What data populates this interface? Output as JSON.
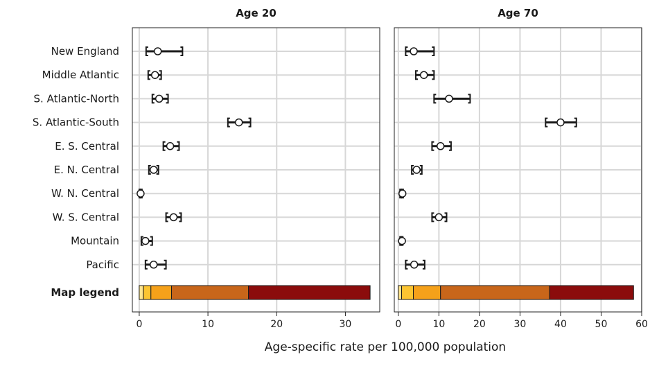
{
  "chart_data": {
    "type": "dot-interval",
    "xlabel": "Age-specific rate per 100,000 population",
    "rows": [
      "New England",
      "Middle Atlantic",
      "S. Atlantic-North",
      "S. Atlantic-South",
      "E. S. Central",
      "E. N. Central",
      "W. N. Central",
      "W. S. Central",
      "Mountain",
      "Pacific"
    ],
    "legend_row_label": "Map legend",
    "panels": [
      {
        "title": "Age 20",
        "xlim": [
          -1,
          35
        ],
        "ticks": [
          0,
          10,
          20,
          30
        ],
        "points": [
          {
            "value": 2.7,
            "low": 1.0,
            "high": 6.3
          },
          {
            "value": 2.3,
            "low": 1.3,
            "high": 3.2
          },
          {
            "value": 2.9,
            "low": 1.9,
            "high": 4.2
          },
          {
            "value": 14.5,
            "low": 12.9,
            "high": 16.2
          },
          {
            "value": 4.5,
            "low": 3.5,
            "high": 5.8
          },
          {
            "value": 2.1,
            "low": 1.4,
            "high": 2.8
          },
          {
            "value": 0.2,
            "low": 0.0,
            "high": 0.4
          },
          {
            "value": 5.0,
            "low": 3.9,
            "high": 6.1
          },
          {
            "value": 0.9,
            "low": 0.3,
            "high": 1.9
          },
          {
            "value": 2.1,
            "low": 0.9,
            "high": 3.9
          }
        ],
        "legend_bins": [
          {
            "from": 0.0,
            "to": 0.6,
            "color": "#fee590"
          },
          {
            "from": 0.6,
            "to": 1.7,
            "color": "#fcc531"
          },
          {
            "from": 1.7,
            "to": 4.7,
            "color": "#f5a11a"
          },
          {
            "from": 4.7,
            "to": 15.9,
            "color": "#c8661a"
          },
          {
            "from": 15.9,
            "to": 33.6,
            "color": "#8b0c0c"
          }
        ]
      },
      {
        "title": "Age 70",
        "xlim": [
          -1,
          60
        ],
        "ticks": [
          0,
          10,
          20,
          30,
          40,
          50,
          60
        ],
        "points": [
          {
            "value": 3.8,
            "low": 1.8,
            "high": 8.8
          },
          {
            "value": 6.3,
            "low": 4.3,
            "high": 8.8
          },
          {
            "value": 12.5,
            "low": 8.8,
            "high": 17.7
          },
          {
            "value": 40.0,
            "low": 36.3,
            "high": 43.9
          },
          {
            "value": 10.4,
            "low": 8.3,
            "high": 13.0
          },
          {
            "value": 4.5,
            "low": 3.3,
            "high": 5.8
          },
          {
            "value": 1.0,
            "low": 0.4,
            "high": 1.2
          },
          {
            "value": 10.0,
            "low": 8.3,
            "high": 11.9
          },
          {
            "value": 0.9,
            "low": 0.4,
            "high": 1.1
          },
          {
            "value": 3.9,
            "low": 1.8,
            "high": 6.5
          }
        ],
        "legend_bins": [
          {
            "from": 0.0,
            "to": 0.8,
            "color": "#fee590"
          },
          {
            "from": 0.8,
            "to": 3.7,
            "color": "#fcc531"
          },
          {
            "from": 3.7,
            "to": 10.4,
            "color": "#f5a11a"
          },
          {
            "from": 10.4,
            "to": 37.3,
            "color": "#c8661a"
          },
          {
            "from": 37.3,
            "to": 58.0,
            "color": "#8b0c0c"
          }
        ]
      }
    ]
  }
}
